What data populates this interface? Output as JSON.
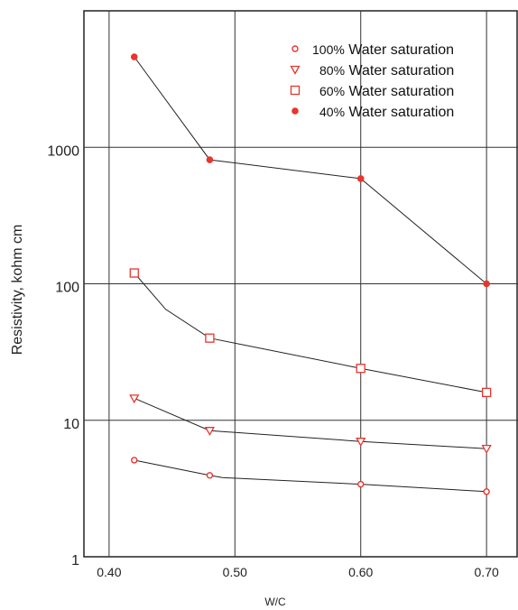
{
  "chart_data": {
    "type": "line",
    "title": "",
    "xlabel": "W/C",
    "ylabel": "Resistivity, kohm  cm",
    "yscale": "log",
    "xlim": [
      0.38,
      0.725
    ],
    "ylim": [
      1,
      10000
    ],
    "xticks": [
      0.4,
      0.5,
      0.6,
      0.7
    ],
    "xtick_labels": [
      "0.40",
      "0.50",
      "0.60",
      "0.70"
    ],
    "yticks": [
      1,
      10,
      100,
      1000
    ],
    "ytick_labels": [
      "1",
      "10",
      "100",
      "1000"
    ],
    "grid": true,
    "legend_position": "top-right",
    "marker_color": "#e8352e",
    "line_color": "#222222",
    "series": [
      {
        "name": "100% Water saturation",
        "marker": "open-circle",
        "points": [
          [
            0.42,
            5.1
          ],
          [
            0.48,
            3.95
          ],
          [
            0.6,
            3.4
          ],
          [
            0.7,
            3.0
          ]
        ],
        "line": [
          [
            0.42,
            5.1
          ],
          [
            0.48,
            3.95
          ],
          [
            0.49,
            3.8
          ],
          [
            0.6,
            3.4
          ],
          [
            0.7,
            3.0
          ]
        ]
      },
      {
        "name": "80% Water saturation",
        "marker": "open-triangle-down",
        "points": [
          [
            0.42,
            14.5
          ],
          [
            0.48,
            8.4
          ],
          [
            0.6,
            7.0
          ],
          [
            0.7,
            6.2
          ]
        ],
        "line": [
          [
            0.42,
            14.5
          ],
          [
            0.48,
            8.4
          ],
          [
            0.6,
            7.0
          ],
          [
            0.7,
            6.2
          ]
        ]
      },
      {
        "name": "60% Water saturation",
        "marker": "open-square",
        "points": [
          [
            0.42,
            120
          ],
          [
            0.48,
            40
          ],
          [
            0.6,
            24
          ],
          [
            0.7,
            16
          ]
        ],
        "line": [
          [
            0.42,
            120
          ],
          [
            0.445,
            65
          ],
          [
            0.48,
            40
          ],
          [
            0.6,
            24
          ],
          [
            0.7,
            16
          ]
        ]
      },
      {
        "name": "40% Water saturation",
        "marker": "filled-circle",
        "points": [
          [
            0.42,
            4600
          ],
          [
            0.48,
            810
          ],
          [
            0.6,
            590
          ],
          [
            0.7,
            100
          ]
        ],
        "line": [
          [
            0.42,
            4600
          ],
          [
            0.48,
            810
          ],
          [
            0.6,
            590
          ],
          [
            0.7,
            100
          ]
        ]
      }
    ]
  }
}
